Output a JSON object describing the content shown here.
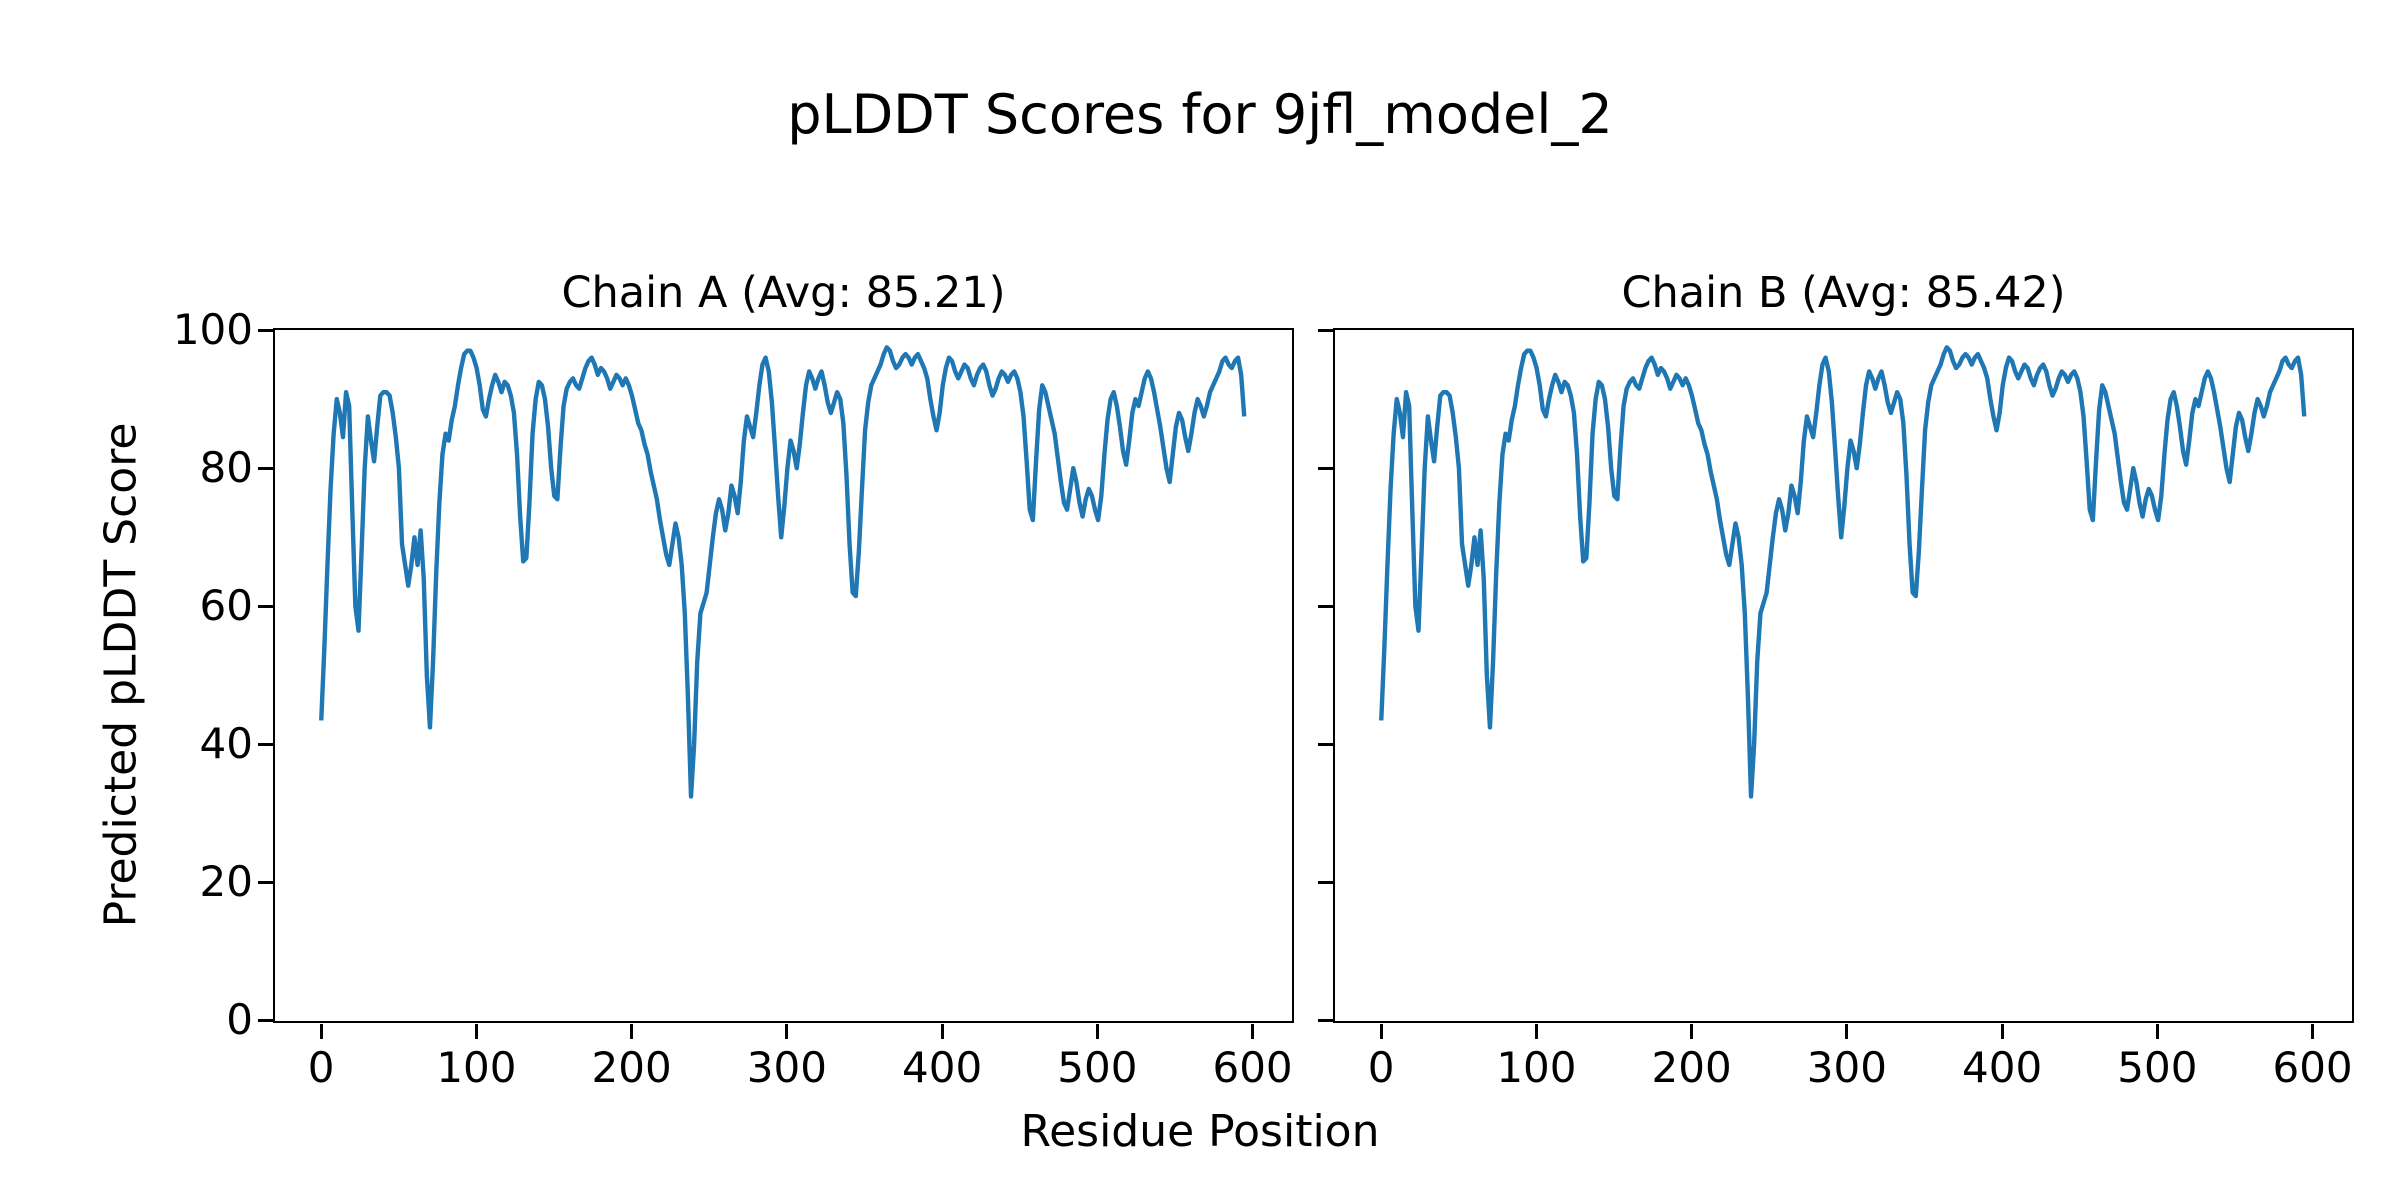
{
  "figure": {
    "title": "pLDDT Scores for 9jfl_model_2",
    "xlabel": "Residue Position",
    "ylabel": "Predicted pLDDT Score",
    "background_color": "#ffffff",
    "text_color": "#000000",
    "line_color": "#1f77b4"
  },
  "chart_data": [
    {
      "type": "line",
      "title": "Chain A (Avg: 85.21)",
      "chain": "A",
      "avg": 85.21,
      "line_color": "#1f77b4",
      "xlabel": "Residue Position",
      "ylabel": "Predicted pLDDT Score",
      "xlim": [
        -29.75,
        624.75
      ],
      "ylim": [
        0,
        100
      ],
      "x_ticks": [
        0,
        100,
        200,
        300,
        400,
        500,
        600
      ],
      "y_ticks": [
        0,
        20,
        40,
        60,
        80,
        100
      ],
      "show_y_tick_labels": true,
      "grid": false,
      "legend": "none",
      "x_start": 0,
      "x_step": 2,
      "values": [
        43.5,
        54,
        66,
        77,
        85,
        90,
        88,
        84.5,
        91,
        89,
        74,
        60,
        56.5,
        68,
        80,
        87.5,
        84,
        81,
        86,
        90.5,
        91,
        91,
        90.5,
        88,
        84.5,
        80,
        69,
        66,
        63,
        66,
        70,
        66,
        71,
        64,
        50,
        42.5,
        52,
        65,
        75,
        82,
        85,
        84,
        87,
        89,
        92,
        94.5,
        96.5,
        97,
        97,
        96,
        94.5,
        92,
        88.5,
        87.5,
        90,
        92,
        93.5,
        92.5,
        91,
        92.5,
        92,
        90.5,
        88,
        82,
        73,
        66.5,
        67,
        75,
        85,
        90,
        92.5,
        92,
        90,
        86,
        80,
        76,
        75.5,
        83,
        89,
        91.5,
        92.5,
        93,
        92,
        91.5,
        93,
        94.5,
        95.5,
        96,
        95,
        93.5,
        94.5,
        94,
        93,
        91.5,
        92.5,
        93.5,
        93,
        92,
        93,
        92,
        90.5,
        88.5,
        86.5,
        85.5,
        83.5,
        82,
        79.5,
        77.5,
        75.5,
        72.5,
        70,
        67.5,
        66,
        69,
        72,
        70,
        66,
        59,
        47,
        32.5,
        40,
        52,
        59,
        60.5,
        62,
        66,
        70,
        73.5,
        75.5,
        74,
        71,
        73.5,
        77.5,
        76,
        73.5,
        78,
        84,
        87.5,
        86,
        84.5,
        88,
        92,
        95,
        96,
        94,
        89.5,
        83,
        76,
        70,
        74.5,
        80,
        84,
        82.5,
        80,
        83.5,
        88,
        92,
        94,
        93,
        91.5,
        93,
        94,
        92,
        89.5,
        88,
        89.5,
        91,
        90,
        86.5,
        79,
        69,
        62,
        61.5,
        68,
        77,
        85.5,
        89.5,
        92,
        93,
        94,
        95,
        96.5,
        97.5,
        97,
        95.5,
        94.5,
        95,
        96,
        96.5,
        96,
        95,
        96,
        96.5,
        95.5,
        94.5,
        93,
        90,
        87.5,
        85.5,
        88,
        92,
        94.5,
        96,
        95.5,
        94,
        93,
        94,
        95,
        94.5,
        93,
        92,
        93.5,
        94.5,
        95,
        94,
        92,
        90.5,
        91.5,
        93,
        94,
        93.5,
        92.5,
        93.5,
        94,
        93,
        91,
        87.5,
        81,
        74,
        72.5,
        81,
        88.5,
        92,
        91,
        89,
        87,
        85,
        81.5,
        78,
        75,
        74,
        77,
        80,
        78,
        75,
        73,
        75.5,
        77,
        76,
        74,
        72.5,
        76,
        82,
        87,
        90,
        91,
        89,
        86,
        82.5,
        80.5,
        84,
        88,
        90,
        89,
        91,
        93,
        94,
        93,
        91,
        88.5,
        86,
        83,
        80,
        78,
        82,
        86,
        88,
        87,
        84.5,
        82.5,
        85,
        88,
        90,
        89,
        87.5,
        89,
        91,
        92,
        93,
        94,
        95.5,
        96,
        95,
        94.5,
        95.5,
        96,
        93.5,
        87.5
      ]
    },
    {
      "type": "line",
      "title": "Chain B (Avg: 85.42)",
      "chain": "B",
      "avg": 85.42,
      "line_color": "#1f77b4",
      "xlabel": "Residue Position",
      "ylabel": "Predicted pLDDT Score",
      "xlim": [
        -29.75,
        624.75
      ],
      "ylim": [
        0,
        100
      ],
      "x_ticks": [
        0,
        100,
        200,
        300,
        400,
        500,
        600
      ],
      "y_ticks": [
        0,
        20,
        40,
        60,
        80,
        100
      ],
      "show_y_tick_labels": false,
      "grid": false,
      "legend": "none",
      "x_start": 0,
      "x_step": 2,
      "values": [
        43.5,
        54,
        66,
        77,
        85,
        90,
        88,
        84.5,
        91,
        89,
        74,
        60,
        56.5,
        68,
        80,
        87.5,
        84,
        81,
        86,
        90.5,
        91,
        91,
        90.5,
        88,
        84.5,
        80,
        69,
        66,
        63,
        66,
        70,
        66,
        71,
        64,
        50,
        42.5,
        52,
        65,
        75,
        82,
        85,
        84,
        87,
        89,
        92,
        94.5,
        96.5,
        97,
        97,
        96,
        94.5,
        92,
        88.5,
        87.5,
        90,
        92,
        93.5,
        92.5,
        91,
        92.5,
        92,
        90.5,
        88,
        82,
        73,
        66.5,
        67,
        75,
        85,
        90,
        92.5,
        92,
        90,
        86,
        80,
        76,
        75.5,
        83,
        89,
        91.5,
        92.5,
        93,
        92,
        91.5,
        93,
        94.5,
        95.5,
        96,
        95,
        93.5,
        94.5,
        94,
        93,
        91.5,
        92.5,
        93.5,
        93,
        92,
        93,
        92,
        90.5,
        88.5,
        86.5,
        85.5,
        83.5,
        82,
        79.5,
        77.5,
        75.5,
        72.5,
        70,
        67.5,
        66,
        69,
        72,
        70,
        66,
        59,
        47,
        32.5,
        40,
        52,
        59,
        60.5,
        62,
        66,
        70,
        73.5,
        75.5,
        74,
        71,
        73.5,
        77.5,
        76,
        73.5,
        78,
        84,
        87.5,
        86,
        84.5,
        88,
        92,
        95,
        96,
        94,
        89.5,
        83,
        76,
        70,
        74.5,
        80,
        84,
        82.5,
        80,
        83.5,
        88,
        92,
        94,
        93,
        91.5,
        93,
        94,
        92,
        89.5,
        88,
        89.5,
        91,
        90,
        86.5,
        79,
        69,
        62,
        61.5,
        68,
        77,
        85.5,
        89.5,
        92,
        93,
        94,
        95,
        96.5,
        97.5,
        97,
        95.5,
        94.5,
        95,
        96,
        96.5,
        96,
        95,
        96,
        96.5,
        95.5,
        94.5,
        93,
        90,
        87.5,
        85.5,
        88,
        92,
        94.5,
        96,
        95.5,
        94,
        93,
        94,
        95,
        94.5,
        93,
        92,
        93.5,
        94.5,
        95,
        94,
        92,
        90.5,
        91.5,
        93,
        94,
        93.5,
        92.5,
        93.5,
        94,
        93,
        91,
        87.5,
        81,
        74,
        72.5,
        81,
        88.5,
        92,
        91,
        89,
        87,
        85,
        81.5,
        78,
        75,
        74,
        77,
        80,
        78,
        75,
        73,
        75.5,
        77,
        76,
        74,
        72.5,
        76,
        82,
        87,
        90,
        91,
        89,
        86,
        82.5,
        80.5,
        84,
        88,
        90,
        89,
        91,
        93,
        94,
        93,
        91,
        88.5,
        86,
        83,
        80,
        78,
        82,
        86,
        88,
        87,
        84.5,
        82.5,
        85,
        88,
        90,
        89,
        87.5,
        89,
        91,
        92,
        93,
        94,
        95.5,
        96,
        95,
        94.5,
        95.5,
        96,
        93.5,
        87.5
      ]
    }
  ]
}
